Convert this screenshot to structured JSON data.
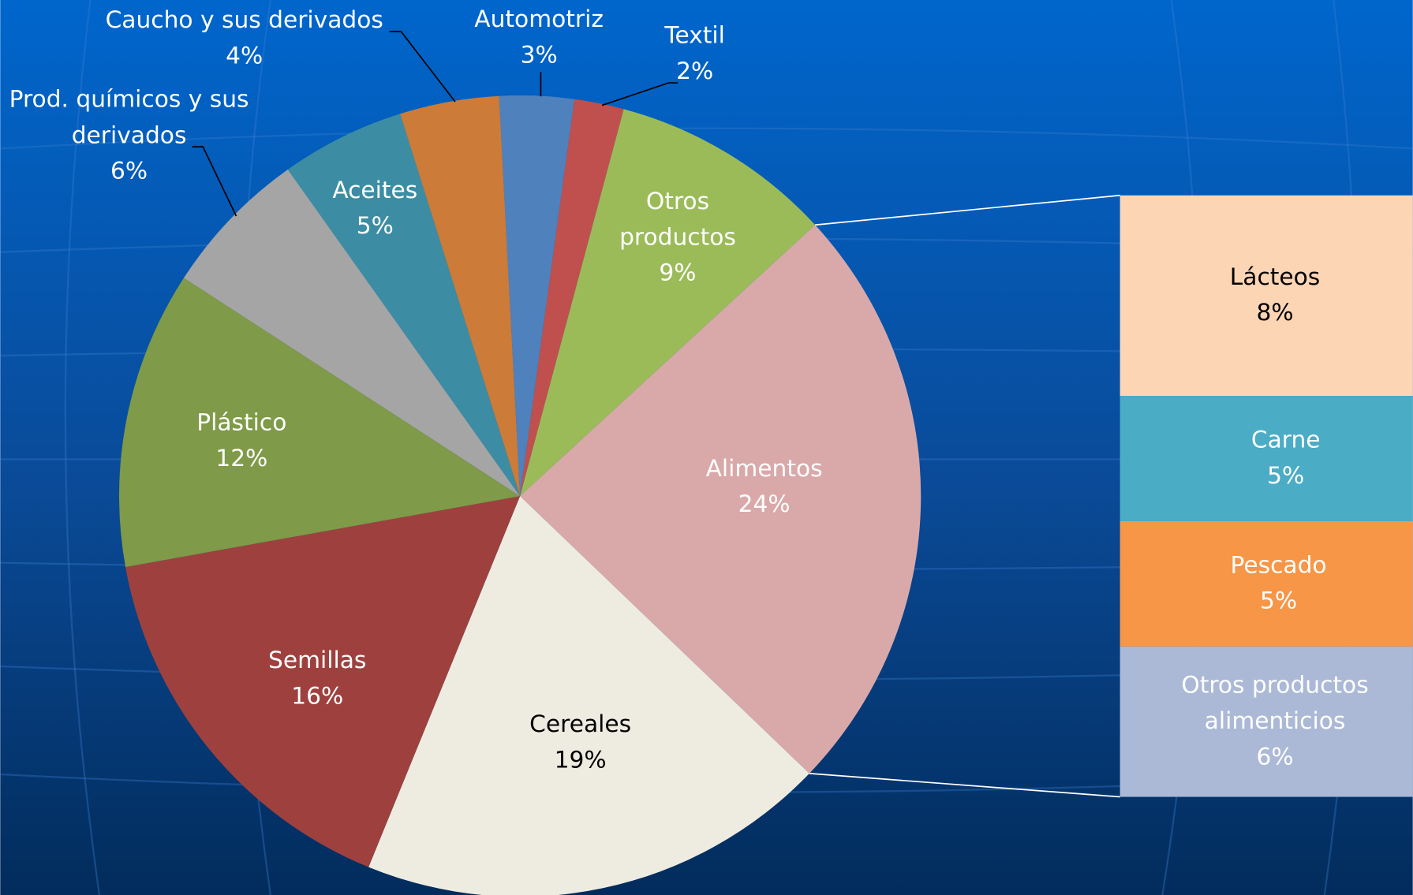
{
  "chart_data": {
    "type": "pie-of-bar",
    "categories": [
      "Automotriz",
      "Textil",
      "Otros productos",
      "Alimentos",
      "Cereales",
      "Semillas",
      "Plástico",
      "Prod. químicos y sus derivados",
      "Aceites",
      "Caucho y sus derivados"
    ],
    "values": [
      3,
      2,
      9,
      24,
      19,
      16,
      12,
      6,
      5,
      4
    ],
    "value_labels": [
      "3%",
      "2%",
      "9%",
      "24%",
      "19%",
      "16%",
      "12%",
      "6%",
      "5%",
      "4%"
    ],
    "colors": [
      "#4f81bd",
      "#c0504d",
      "#9bbb59",
      "#d9a9aa",
      "#eeece1",
      "#9e413e",
      "#7f9a48",
      "#a5a5a5",
      "#3c8da3",
      "#cc7b38"
    ],
    "breakdown": {
      "categories": [
        "Lácteos",
        "Carne",
        "Pescado",
        "Otros productos alimenticios"
      ],
      "values": [
        8,
        5,
        5,
        6
      ],
      "value_labels": [
        "8%",
        "5%",
        "5%",
        "6%"
      ],
      "colors": [
        "#fcd5b5",
        "#4bacc6",
        "#f79646",
        "#abb9d6"
      ]
    }
  }
}
